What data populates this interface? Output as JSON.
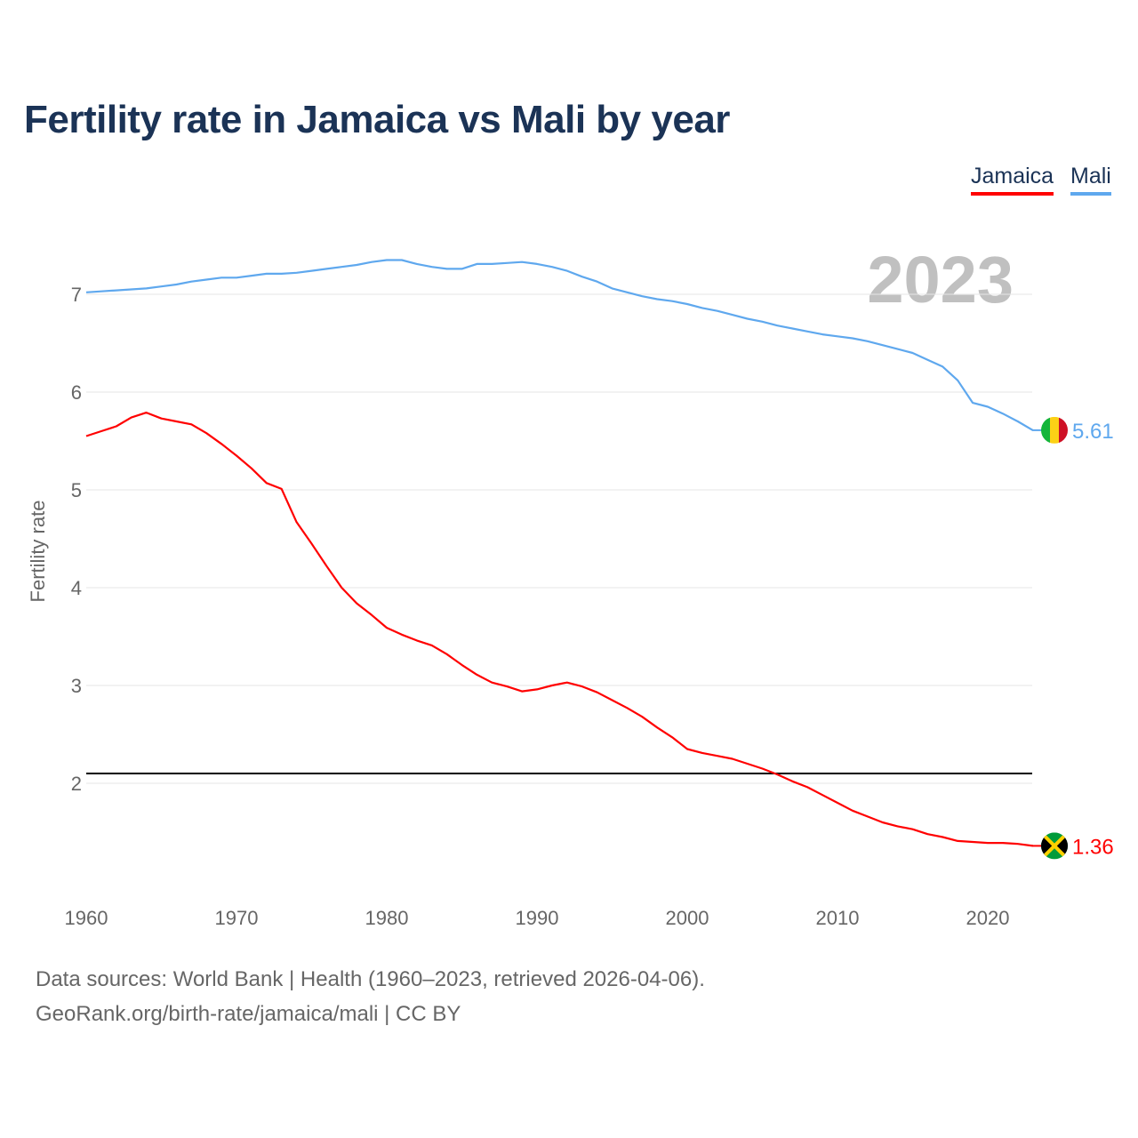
{
  "chart_data": {
    "type": "line",
    "title": "Fertility rate in Jamaica vs Mali by year",
    "xlabel": "",
    "ylabel": "Fertility rate",
    "xlim": [
      1960,
      2023
    ],
    "ylim": [
      1.0,
      7.6
    ],
    "yticks": [
      2,
      3,
      4,
      5,
      6,
      7
    ],
    "xticks": [
      1960,
      1970,
      1980,
      1990,
      2000,
      2010,
      2020
    ],
    "grid": true,
    "legend": "top-right",
    "year_label": "2023",
    "reference_line": 2.1,
    "x": [
      1960,
      1961,
      1962,
      1963,
      1964,
      1965,
      1966,
      1967,
      1968,
      1969,
      1970,
      1971,
      1972,
      1973,
      1974,
      1975,
      1976,
      1977,
      1978,
      1979,
      1980,
      1981,
      1982,
      1983,
      1984,
      1985,
      1986,
      1987,
      1988,
      1989,
      1990,
      1991,
      1992,
      1993,
      1994,
      1995,
      1996,
      1997,
      1998,
      1999,
      2000,
      2001,
      2002,
      2003,
      2004,
      2005,
      2006,
      2007,
      2008,
      2009,
      2010,
      2011,
      2012,
      2013,
      2014,
      2015,
      2016,
      2017,
      2018,
      2019,
      2020,
      2021,
      2022,
      2023
    ],
    "series": [
      {
        "name": "Jamaica",
        "color": "#ff0000",
        "end_label": "1.36",
        "values": [
          5.55,
          5.6,
          5.65,
          5.74,
          5.79,
          5.73,
          5.7,
          5.67,
          5.58,
          5.47,
          5.35,
          5.22,
          5.07,
          5.01,
          4.67,
          4.45,
          4.22,
          4.0,
          3.84,
          3.72,
          3.59,
          3.52,
          3.46,
          3.41,
          3.32,
          3.21,
          3.11,
          3.03,
          2.99,
          2.94,
          2.96,
          3.0,
          3.03,
          2.99,
          2.93,
          2.85,
          2.77,
          2.68,
          2.57,
          2.47,
          2.35,
          2.31,
          2.28,
          2.25,
          2.2,
          2.15,
          2.09,
          2.02,
          1.96,
          1.88,
          1.8,
          1.72,
          1.66,
          1.6,
          1.56,
          1.53,
          1.48,
          1.45,
          1.41,
          1.4,
          1.39,
          1.39,
          1.38,
          1.36
        ]
      },
      {
        "name": "Mali",
        "color": "#5fa8ee",
        "end_label": "5.61",
        "values": [
          7.02,
          7.03,
          7.04,
          7.05,
          7.06,
          7.08,
          7.1,
          7.13,
          7.15,
          7.17,
          7.17,
          7.19,
          7.21,
          7.21,
          7.22,
          7.24,
          7.26,
          7.28,
          7.3,
          7.33,
          7.35,
          7.35,
          7.31,
          7.28,
          7.26,
          7.26,
          7.31,
          7.31,
          7.32,
          7.33,
          7.31,
          7.28,
          7.24,
          7.18,
          7.13,
          7.06,
          7.02,
          6.98,
          6.95,
          6.93,
          6.9,
          6.86,
          6.83,
          6.79,
          6.75,
          6.72,
          6.68,
          6.65,
          6.62,
          6.59,
          6.57,
          6.55,
          6.52,
          6.48,
          6.44,
          6.4,
          6.33,
          6.26,
          6.12,
          5.89,
          5.85,
          5.78,
          5.7,
          5.61
        ]
      }
    ]
  },
  "legend": {
    "jamaica": "Jamaica",
    "mali": "Mali"
  },
  "footer": {
    "sources": "Data sources: World Bank | Health (1960–2023, retrieved 2026-04-06).",
    "credit": "GeoRank.org/birth-rate/jamaica/mali | CC BY"
  }
}
